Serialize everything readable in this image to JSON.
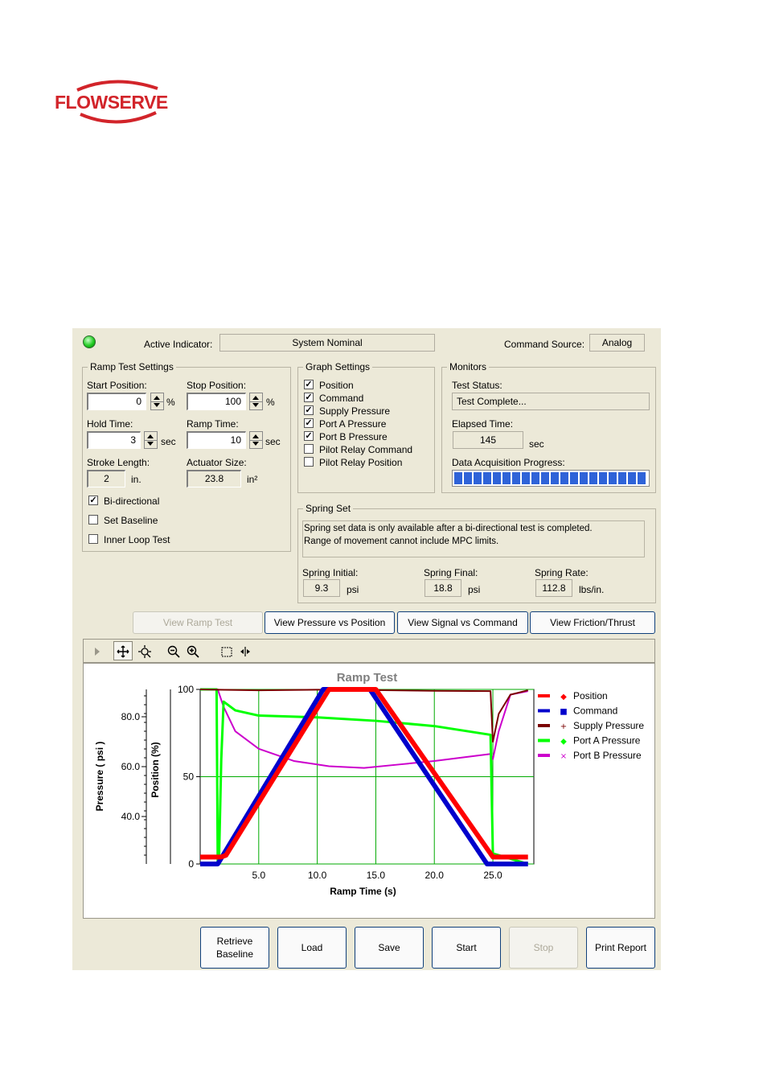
{
  "brand": {
    "logo_text": "FLOWSERVE"
  },
  "header": {
    "active_indicator_label": "Active Indicator:",
    "active_indicator_value": "System Nominal",
    "command_source_label": "Command Source:",
    "command_source_value": "Analog",
    "led_color": "#22cc22"
  },
  "ramp_settings": {
    "title": "Ramp Test Settings",
    "start_position_label": "Start Position:",
    "start_position": "0",
    "start_unit": "%",
    "stop_position_label": "Stop Position:",
    "stop_position": "100",
    "stop_unit": "%",
    "hold_time_label": "Hold Time:",
    "hold_time": "3",
    "hold_unit": "sec",
    "ramp_time_label": "Ramp Time:",
    "ramp_time": "10",
    "ramp_unit": "sec",
    "stroke_length_label": "Stroke Length:",
    "stroke_length": "2",
    "stroke_unit": "in.",
    "actuator_size_label": "Actuator Size:",
    "actuator_size": "23.8",
    "actuator_unit": "in²",
    "checks": [
      {
        "label": "Bi-directional",
        "checked": true
      },
      {
        "label": "Set Baseline",
        "checked": false
      },
      {
        "label": "Inner Loop Test",
        "checked": false
      }
    ]
  },
  "graph_settings": {
    "title": "Graph Settings",
    "items": [
      {
        "label": "Position",
        "checked": true
      },
      {
        "label": "Command",
        "checked": true
      },
      {
        "label": "Supply Pressure",
        "checked": true
      },
      {
        "label": "Port A Pressure",
        "checked": true
      },
      {
        "label": "Port B Pressure",
        "checked": true
      },
      {
        "label": "Pilot Relay Command",
        "checked": false
      },
      {
        "label": "Pilot Relay Position",
        "checked": false
      }
    ]
  },
  "monitors": {
    "title": "Monitors",
    "test_status_label": "Test Status:",
    "test_status": "Test Complete...",
    "elapsed_label": "Elapsed Time:",
    "elapsed": "145",
    "elapsed_unit": "sec",
    "progress_label": "Data Acquisition Progress:",
    "progress": 1.0
  },
  "spring_set": {
    "title": "Spring Set",
    "message_line1": "Spring set data is only available after a bi-directional test is completed.",
    "message_line2": "Range of movement cannot include MPC limits.",
    "initial_label": "Spring Initial:",
    "initial": "9.3",
    "initial_unit": "psi",
    "final_label": "Spring Final:",
    "final": "18.8",
    "final_unit": "psi",
    "rate_label": "Spring Rate:",
    "rate": "112.8",
    "rate_unit": "lbs/in."
  },
  "tabs": [
    "View Ramp Test",
    "View Pressure vs Position",
    "View Signal vs Command",
    "View Friction/Thrust"
  ],
  "toolbar_icons": [
    "play-icon",
    "pan-icon",
    "zoom-fit-icon",
    "zoom-out-icon",
    "zoom-in-icon",
    "select-box-icon",
    "cursor-split-icon"
  ],
  "buttons": {
    "retrieve_line1": "Retrieve",
    "retrieve_line2": "Baseline",
    "load": "Load",
    "save": "Save",
    "start": "Start",
    "stop": "Stop",
    "print": "Print Report"
  },
  "chart_data": {
    "type": "line",
    "title": "Ramp Test",
    "xlabel": "Ramp Time (s)",
    "ylabel_position": "Position (%)",
    "ylabel_pressure": "Pressure ( psi )",
    "xlim": [
      0,
      28.5
    ],
    "x_ticks": [
      "5.0",
      "10.0",
      "15.0",
      "20.0",
      "25.0"
    ],
    "position_ticks": [
      "0",
      "50",
      "100"
    ],
    "pressure_ticks": [
      "40.0",
      "60.0",
      "80.0"
    ],
    "grid": true,
    "legend_position": "right",
    "series": [
      {
        "name": "Position",
        "color": "#ff0000",
        "marker": "◆",
        "x": [
          0,
          1.8,
          2.2,
          11.0,
          15.0,
          25.0,
          28
        ],
        "y": [
          4,
          4,
          5,
          100,
          100,
          4,
          4
        ]
      },
      {
        "name": "Command",
        "color": "#0000cc",
        "marker": "■",
        "x": [
          0,
          1.5,
          10.5,
          14.5,
          24.5,
          28
        ],
        "y": [
          0,
          0,
          100,
          100,
          0,
          0
        ]
      },
      {
        "name": "Supply Pressure",
        "color": "#7a0000",
        "marker": "+",
        "x": [
          0,
          5,
          10,
          15,
          20,
          24.8,
          25.0,
          25.5,
          26.5,
          28
        ],
        "y": [
          100,
          99.5,
          99.8,
          99.6,
          99.2,
          99.0,
          70,
          86,
          97,
          99.5
        ]
      },
      {
        "name": "Port A Pressure",
        "color": "#00ff00",
        "marker": "◆",
        "x": [
          0,
          1.4,
          1.5,
          1.6,
          1.8,
          2.0,
          3.0,
          5,
          10,
          15,
          20,
          24.8,
          25.0,
          28
        ],
        "y": [
          100,
          100,
          0,
          0,
          60,
          93,
          88,
          85,
          84,
          82,
          79,
          74,
          6,
          0
        ]
      },
      {
        "name": "Port B Pressure",
        "color": "#cc00cc",
        "marker": "×",
        "x": [
          0,
          1.5,
          2.0,
          3.0,
          5,
          8,
          11,
          14,
          17,
          20,
          24.8,
          25.0,
          25.5,
          26.5,
          28
        ],
        "y": [
          100,
          100,
          90,
          76,
          66,
          59,
          56,
          55,
          57,
          59,
          63,
          60,
          76,
          97,
          99
        ]
      }
    ]
  }
}
